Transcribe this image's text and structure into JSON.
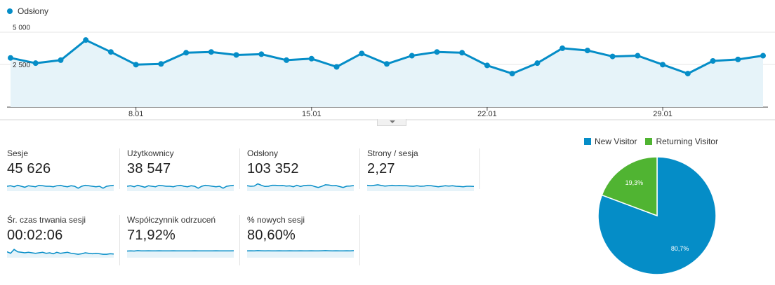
{
  "colors": {
    "primary": "#058dc7",
    "fill": "#e6f3f9",
    "green": "#50b432",
    "grid": "#dddddd"
  },
  "chart_data": [
    {
      "type": "area",
      "series": [
        {
          "name": "Odsłony",
          "values": [
            3300,
            2950,
            3150,
            4500,
            3700,
            2850,
            2900,
            3650,
            3700,
            3500,
            3550,
            3150,
            3250,
            2700,
            3600,
            2900,
            3450,
            3700,
            3650,
            2800,
            2250,
            2950,
            3950,
            3800,
            3400,
            3450,
            2850,
            2250,
            3100,
            3200,
            3450
          ]
        }
      ],
      "x_tick_labels": [
        "8.01",
        "15.01",
        "22.01",
        "29.01"
      ],
      "y_tick_labels": [
        "5 000",
        "2 500"
      ],
      "ylim": [
        0,
        5000
      ],
      "legend": "top-left"
    },
    {
      "type": "pie",
      "series": [
        {
          "name": "New Visitor",
          "value": 80.7,
          "label": "80,7%",
          "color": "#058dc7"
        },
        {
          "name": "Returning Visitor",
          "value": 19.3,
          "label": "19,3%",
          "color": "#50b432"
        }
      ],
      "legend": "top"
    }
  ],
  "metrics": [
    {
      "label": "Sesje",
      "value": "45 626",
      "spark": [
        0.5,
        0.55,
        0.45,
        0.6,
        0.5,
        0.4,
        0.55,
        0.5,
        0.45,
        0.6,
        0.55,
        0.5,
        0.5,
        0.45,
        0.55,
        0.6,
        0.5,
        0.45,
        0.55,
        0.5,
        0.3,
        0.5,
        0.6,
        0.55,
        0.5,
        0.45,
        0.5,
        0.3,
        0.5,
        0.55,
        0.6
      ]
    },
    {
      "label": "Użytkownicy",
      "value": "38 547",
      "spark": [
        0.5,
        0.55,
        0.45,
        0.6,
        0.5,
        0.4,
        0.55,
        0.5,
        0.45,
        0.6,
        0.55,
        0.5,
        0.5,
        0.45,
        0.55,
        0.6,
        0.5,
        0.45,
        0.55,
        0.5,
        0.3,
        0.5,
        0.6,
        0.55,
        0.5,
        0.45,
        0.5,
        0.3,
        0.5,
        0.55,
        0.6
      ]
    },
    {
      "label": "Odsłony",
      "value": "103 352",
      "spark": [
        0.55,
        0.5,
        0.52,
        0.75,
        0.6,
        0.48,
        0.5,
        0.6,
        0.6,
        0.57,
        0.58,
        0.52,
        0.54,
        0.45,
        0.6,
        0.48,
        0.57,
        0.6,
        0.6,
        0.47,
        0.38,
        0.49,
        0.65,
        0.63,
        0.56,
        0.57,
        0.47,
        0.38,
        0.51,
        0.53,
        0.57
      ]
    },
    {
      "label": "Strony / sesja",
      "value": "2,27",
      "spark": [
        0.6,
        0.55,
        0.6,
        0.65,
        0.58,
        0.52,
        0.55,
        0.6,
        0.55,
        0.58,
        0.56,
        0.55,
        0.52,
        0.5,
        0.55,
        0.5,
        0.52,
        0.58,
        0.55,
        0.5,
        0.45,
        0.5,
        0.55,
        0.52,
        0.55,
        0.5,
        0.48,
        0.45,
        0.5,
        0.5,
        0.48
      ]
    },
    {
      "label": "Śr. czas trwania sesji",
      "value": "00:02:06",
      "spark": [
        0.6,
        0.45,
        0.85,
        0.6,
        0.55,
        0.5,
        0.55,
        0.5,
        0.45,
        0.5,
        0.55,
        0.45,
        0.5,
        0.4,
        0.55,
        0.45,
        0.5,
        0.55,
        0.45,
        0.4,
        0.35,
        0.4,
        0.5,
        0.45,
        0.4,
        0.45,
        0.4,
        0.35,
        0.35,
        0.4,
        0.38
      ]
    },
    {
      "label": "Współczynnik odrzuceń",
      "value": "71,92%",
      "spark": [
        0.68,
        0.7,
        0.68,
        0.72,
        0.7,
        0.7,
        0.71,
        0.69,
        0.7,
        0.71,
        0.7,
        0.69,
        0.7,
        0.71,
        0.7,
        0.7,
        0.69,
        0.7,
        0.7,
        0.71,
        0.7,
        0.7,
        0.69,
        0.7,
        0.7,
        0.71,
        0.7,
        0.7,
        0.7,
        0.7,
        0.71
      ]
    },
    {
      "label": "% nowych sesji",
      "value": "80,60%",
      "spark": [
        0.7,
        0.71,
        0.7,
        0.72,
        0.71,
        0.7,
        0.71,
        0.7,
        0.7,
        0.71,
        0.7,
        0.7,
        0.71,
        0.7,
        0.7,
        0.71,
        0.7,
        0.7,
        0.71,
        0.7,
        0.7,
        0.71,
        0.72,
        0.71,
        0.7,
        0.71,
        0.7,
        0.7,
        0.71,
        0.7,
        0.72
      ]
    }
  ]
}
